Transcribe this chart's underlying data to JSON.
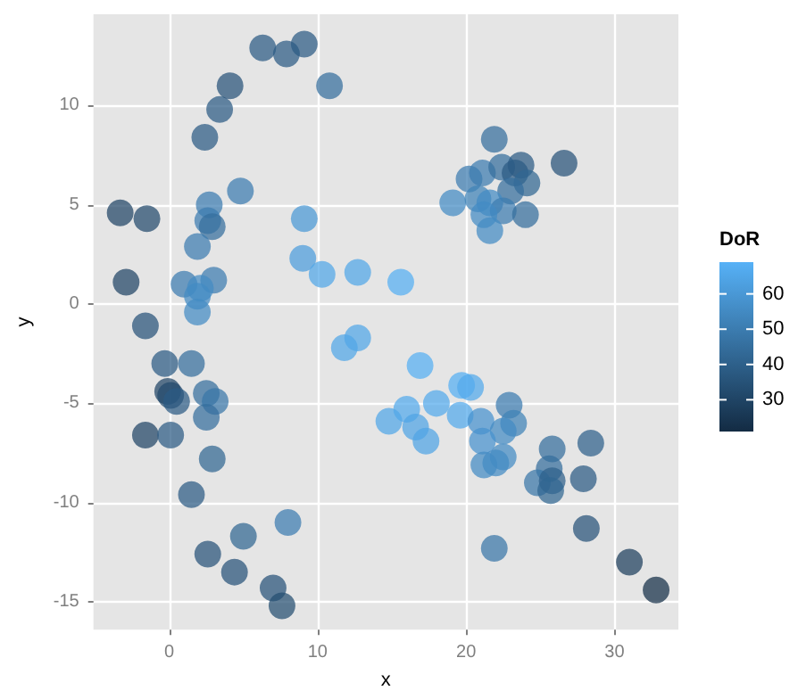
{
  "chart_data": {
    "type": "scatter",
    "xlabel": "x",
    "ylabel": "y",
    "clabel": "DoR",
    "marker": "circle",
    "grid": true,
    "xlim": [
      -5.1,
      34.3
    ],
    "ylim": [
      -16.4,
      14.6
    ],
    "xticks": [
      0,
      10,
      20,
      30
    ],
    "yticks": [
      -15,
      -10,
      -5,
      0,
      5,
      10
    ],
    "clim": [
      21,
      69
    ],
    "cticks": [
      30,
      40,
      50,
      60
    ],
    "x": [
      -3.3,
      -1.5,
      -2.9,
      -1.6,
      2.4,
      3.4,
      4.1,
      6.3,
      7.9,
      9.1,
      10.8,
      4.8,
      2.7,
      2.6,
      2.9,
      1.9,
      1.0,
      3.0,
      2.1,
      1.9,
      1.9,
      9.1,
      9.0,
      10.3,
      12.7,
      21.9,
      26.6,
      19.1,
      20.2,
      21.1,
      22.4,
      23.7,
      23.3,
      24.1,
      23.0,
      20.8,
      21.6,
      22.5,
      24.0,
      21.2,
      21.6,
      15.6,
      -0.3,
      1.5,
      -0.1,
      0.1,
      0.5,
      2.5,
      3.1,
      2.5,
      -1.6,
      0.1,
      2.9,
      1.5,
      8.0,
      5.0,
      2.6,
      4.4,
      7.0,
      7.6,
      11.8,
      12.7,
      16.9,
      19.7,
      20.3,
      18.0,
      16.0,
      14.8,
      16.6,
      17.3,
      19.6,
      21.0,
      22.9,
      23.2,
      22.5,
      21.1,
      22.5,
      21.2,
      22.0,
      25.8,
      28.4,
      25.6,
      24.8,
      25.8,
      25.7,
      27.9,
      28.1,
      21.9,
      31.0,
      32.8
    ],
    "values": [
      4.6,
      4.3,
      1.1,
      -1.1,
      8.4,
      9.8,
      11.0,
      12.9,
      12.6,
      13.1,
      11.0,
      5.7,
      5.0,
      4.2,
      3.9,
      2.9,
      1.0,
      1.2,
      0.8,
      0.4,
      -0.4,
      4.3,
      2.3,
      1.5,
      1.6,
      8.3,
      7.1,
      5.1,
      6.3,
      6.6,
      6.9,
      7.0,
      6.6,
      6.1,
      5.7,
      5.3,
      5.1,
      4.7,
      4.5,
      4.5,
      3.7,
      1.1,
      -3.0,
      -3.0,
      -4.4,
      -4.6,
      -4.9,
      -4.5,
      -4.9,
      -5.7,
      -6.6,
      -6.6,
      -7.8,
      -9.6,
      -11.0,
      -11.7,
      -12.6,
      -13.5,
      -14.3,
      -15.2,
      -2.2,
      -1.7,
      -3.1,
      -4.1,
      -4.2,
      -5.0,
      -5.3,
      -5.9,
      -6.2,
      -6.9,
      -5.6,
      -5.9,
      -5.1,
      -6.0,
      -6.4,
      -6.9,
      -7.7,
      -8.1,
      -8.0,
      -7.3,
      -7.0,
      -8.3,
      -9.0,
      -8.9,
      -9.4,
      -8.8,
      -11.3,
      -12.3,
      -13.0,
      -14.4
    ],
    "cvalues": [
      30,
      32,
      30,
      35,
      38,
      38,
      35,
      38,
      38,
      38,
      45,
      50,
      50,
      50,
      45,
      50,
      50,
      50,
      55,
      55,
      55,
      60,
      62,
      65,
      65,
      45,
      35,
      55,
      50,
      50,
      45,
      38,
      38,
      42,
      45,
      52,
      55,
      50,
      45,
      55,
      55,
      68,
      38,
      45,
      30,
      32,
      38,
      45,
      48,
      45,
      30,
      38,
      42,
      38,
      50,
      42,
      35,
      35,
      35,
      33,
      65,
      65,
      68,
      68,
      66,
      66,
      66,
      65,
      64,
      64,
      66,
      58,
      50,
      52,
      55,
      58,
      55,
      55,
      55,
      45,
      40,
      45,
      48,
      40,
      42,
      38,
      35,
      48,
      28,
      22
    ]
  }
}
